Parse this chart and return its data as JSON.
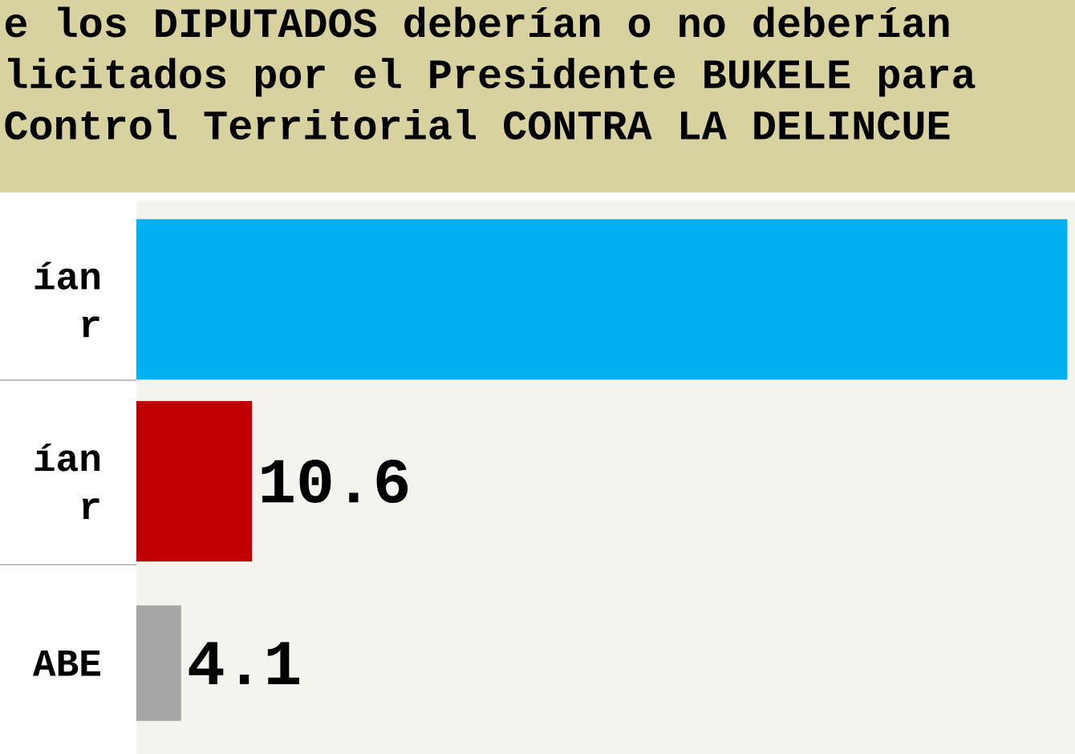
{
  "chart_data": {
    "type": "bar",
    "orientation": "horizontal",
    "title": "e los **DIPUTADOS** deberían o no deberían\nlicitados por el Presidente BUKELE para\n Control Territorial CONTRA LA DELINCUE",
    "categories": [
      "ían r",
      "ían r",
      "ABE"
    ],
    "values": [
      85.3,
      10.6,
      4.1
    ],
    "value_labels": [
      null,
      "10.6",
      "4.1"
    ],
    "colors": [
      "#00b0f0",
      "#c00000",
      "#a6a6a6"
    ],
    "xlim": [
      0,
      86
    ],
    "tick_labels": "y"
  }
}
